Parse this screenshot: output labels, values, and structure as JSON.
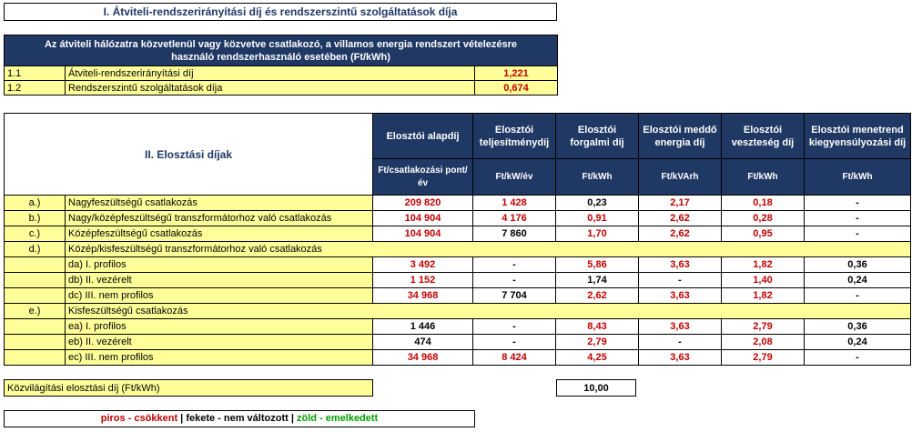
{
  "section1": {
    "title": "I. Átviteli-rendszerirányítási díj és rendszerszintű szolgáltatások díja",
    "header_line1": "Az átviteli hálózatra közvetlenül vagy közvetve csatlakozó, a villamos energia rendszert vételezésre",
    "header_line2": "használó rendszerhasználó esetében (Ft/kWh)",
    "rows": [
      {
        "code": "1.1",
        "label": "Átviteli-rendszerirányítási díj",
        "value": "1,221"
      },
      {
        "code": "1.2",
        "label": "Rendszerszintű szolgáltatások díja",
        "value": "0,674"
      }
    ]
  },
  "section2": {
    "title": "II. Elosztási díjak",
    "columns": [
      {
        "name": "Elosztói alapdíj",
        "unit": "Ft/csatlakozási pont/év"
      },
      {
        "name": "Elosztói teljesítménydíj",
        "unit": "Ft/kW/év"
      },
      {
        "name": "Elosztói forgalmi díj",
        "unit": "Ft/kWh"
      },
      {
        "name": "Elosztói meddő energia díj",
        "unit": "Ft/kVArh"
      },
      {
        "name": "Elosztói veszteség díj",
        "unit": "Ft/kWh"
      },
      {
        "name": "Elosztói menetrend kiegyensúlyozási díj",
        "unit": "Ft/kWh"
      }
    ],
    "rows": [
      {
        "code": "a.)",
        "label": "Nagyfeszültségű csatlakozás",
        "cells": [
          "209 820",
          "1 428",
          "0,23",
          "2,17",
          "0,18",
          "-"
        ],
        "colors": [
          "red",
          "red",
          "blk",
          "red",
          "red",
          "blk"
        ]
      },
      {
        "code": "b.)",
        "label": "Nagy/középfeszültségű transzformátorhoz való csatlakozás",
        "cells": [
          "104 904",
          "4 176",
          "0,91",
          "2,62",
          "0,28",
          "-"
        ],
        "colors": [
          "red",
          "red",
          "red",
          "red",
          "red",
          "blk"
        ]
      },
      {
        "code": "c.)",
        "label": "Középfeszültségű csatlakozás",
        "cells": [
          "104 904",
          "7 860",
          "1,70",
          "2,62",
          "0,95",
          "-"
        ],
        "colors": [
          "red",
          "blk",
          "red",
          "red",
          "red",
          "blk"
        ]
      },
      {
        "code": "d.)",
        "label": "Közép/kisfeszültségű transzformátorhoz való csatlakozás",
        "cells": [],
        "colors": []
      },
      {
        "code": "",
        "label": "da) I. profilos",
        "cells": [
          "3 492",
          "-",
          "5,86",
          "3,63",
          "1,82",
          "0,36"
        ],
        "colors": [
          "red",
          "blk",
          "red",
          "red",
          "red",
          "blk"
        ]
      },
      {
        "code": "",
        "label": "db) II. vezérelt",
        "cells": [
          "1 152",
          "-",
          "1,74",
          "-",
          "1,40",
          "0,24"
        ],
        "colors": [
          "red",
          "blk",
          "blk",
          "blk",
          "red",
          "blk"
        ]
      },
      {
        "code": "",
        "label": "dc) III. nem profilos",
        "cells": [
          "34 968",
          "7 704",
          "2,62",
          "3,63",
          "1,82",
          "-"
        ],
        "colors": [
          "red",
          "blk",
          "red",
          "red",
          "red",
          "blk"
        ]
      },
      {
        "code": "e.)",
        "label": "Kisfeszültségű csatlakozás",
        "cells": [],
        "colors": []
      },
      {
        "code": "",
        "label": "ea) I. profilos",
        "cells": [
          "1 446",
          "-",
          "8,43",
          "3,63",
          "2,79",
          "0,36"
        ],
        "colors": [
          "blk",
          "blk",
          "red",
          "red",
          "red",
          "blk"
        ]
      },
      {
        "code": "",
        "label": "eb) II. vezérelt",
        "cells": [
          "474",
          "-",
          "2,79",
          "-",
          "2,08",
          "0,24"
        ],
        "colors": [
          "blk",
          "blk",
          "red",
          "blk",
          "red",
          "blk"
        ]
      },
      {
        "code": "",
        "label": "ec) III. nem profilos",
        "cells": [
          "34 968",
          "8 424",
          "4,25",
          "3,63",
          "2,79",
          "-"
        ],
        "colors": [
          "red",
          "red",
          "red",
          "red",
          "red",
          "blk"
        ]
      }
    ]
  },
  "street_lighting": {
    "label": "Közvilágítási elosztási díj (Ft/kWh)",
    "value": "10,00"
  },
  "legend": {
    "red": "piros - csökkent",
    "sep1": " | ",
    "black": "fekete - nem változott",
    "sep2": " | ",
    "green": "zöld - emelkedett"
  },
  "colors": {
    "navy": "#1f3864",
    "yellow": "#ffff99",
    "red": "#c00000",
    "green": "#00a000"
  }
}
